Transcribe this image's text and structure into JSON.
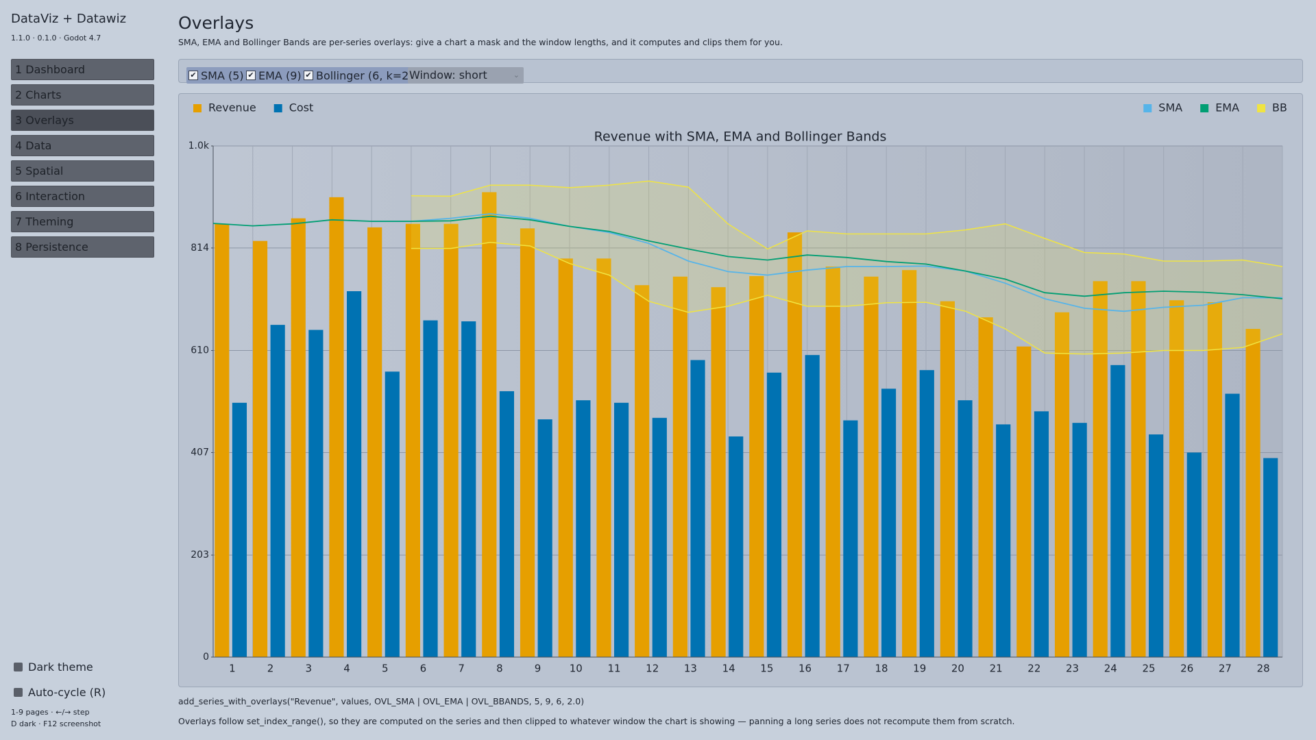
{
  "sidebar": {
    "title": "DataViz + Datawiz",
    "version": "1.1.0 · 0.1.0 · Godot 4.7",
    "nav": [
      "1  Dashboard",
      "2  Charts",
      "3  Overlays",
      "4  Data",
      "5  Spatial",
      "6  Interaction",
      "7  Theming",
      "8  Persistence"
    ],
    "active_index": 2,
    "options": [
      {
        "label": "Dark theme",
        "checked": false
      },
      {
        "label": "Auto-cycle (R)",
        "checked": false
      }
    ],
    "help": [
      "1-9 pages · ←/→ step",
      "D dark · F12 screenshot"
    ]
  },
  "header": {
    "title": "Overlays",
    "subtitle": "SMA, EMA and Bollinger Bands are per-series overlays: give a chart a mask and the window lengths, and it computes and clips them for you."
  },
  "toolbar": {
    "toggles": [
      {
        "label": "SMA (5)",
        "checked": true
      },
      {
        "label": "EMA (9)",
        "checked": true
      },
      {
        "label": "Bollinger (6, k=2)",
        "checked": true
      }
    ],
    "dropdown": "Window: short"
  },
  "chart_data": {
    "type": "bar",
    "title": "Revenue with SMA, EMA and Bollinger Bands",
    "categories": [
      "1",
      "2",
      "3",
      "4",
      "5",
      "6",
      "7",
      "8",
      "9",
      "10",
      "11",
      "12",
      "13",
      "14",
      "15",
      "16",
      "17",
      "18",
      "19",
      "20",
      "21",
      "22",
      "23",
      "24",
      "25",
      "26",
      "27",
      "28"
    ],
    "series": [
      {
        "name": "Revenue",
        "color": "#e69f00",
        "values": [
          862,
          828,
          873,
          915,
          855,
          862,
          862,
          925,
          853,
          793,
          793,
          740,
          757,
          736,
          758,
          845,
          777,
          757,
          770,
          708,
          676,
          618,
          686,
          748,
          748,
          710,
          706,
          653
        ]
      },
      {
        "name": "Cost",
        "color": "#0072b2",
        "values": [
          506,
          661,
          651,
          728,
          568,
          670,
          668,
          529,
          473,
          511,
          506,
          476,
          591,
          439,
          566,
          601,
          471,
          534,
          571,
          511,
          463,
          489,
          466,
          581,
          443,
          407,
          524,
          396
        ]
      }
    ],
    "overlays": [
      {
        "name": "SMA",
        "color": "#56b4e9",
        "values": [
          null,
          null,
          null,
          null,
          867,
          867,
          873,
          882,
          873,
          857,
          845,
          823,
          788,
          767,
          760,
          770,
          777,
          777,
          778,
          768,
          744,
          713,
          694,
          688,
          696,
          700,
          715,
          715
        ]
      },
      {
        "name": "EMA",
        "color": "#009e73",
        "values": [
          863,
          858,
          862,
          870,
          867,
          867,
          868,
          877,
          870,
          857,
          847,
          828,
          812,
          797,
          790,
          800,
          795,
          787,
          782,
          768,
          752,
          725,
          718,
          725,
          728,
          726,
          721,
          713
        ]
      },
      {
        "name": "BB",
        "color": "#f0e442",
        "upper": [
          null,
          null,
          null,
          null,
          null,
          918,
          917,
          939,
          939,
          934,
          939,
          947,
          935,
          862,
          812,
          848,
          842,
          842,
          842,
          850,
          862,
          833,
          805,
          802,
          788,
          788,
          790,
          777
        ],
        "lower": [
          null,
          null,
          null,
          null,
          null,
          813,
          813,
          825,
          818,
          783,
          760,
          708,
          686,
          698,
          720,
          698,
          698,
          705,
          706,
          688,
          653,
          605,
          603,
          605,
          610,
          610,
          616,
          643
        ]
      }
    ],
    "ylim": [
      0,
      1017
    ],
    "yticks": [
      0,
      203,
      407,
      610,
      814,
      {
        "value": 1017,
        "label": "1.0k"
      }
    ],
    "grid": true,
    "legend": "top-left",
    "overlay_legend": "top-right"
  },
  "footer": {
    "code": "add_series_with_overlays(\"Revenue\", values, OVL_SMA | OVL_EMA | OVL_BBANDS, 5, 9, 6, 2.0)",
    "note": "Overlays follow set_index_range(), so they are computed on the series and then clipped to whatever window the chart is showing — panning a long series does not recompute them from scratch."
  }
}
